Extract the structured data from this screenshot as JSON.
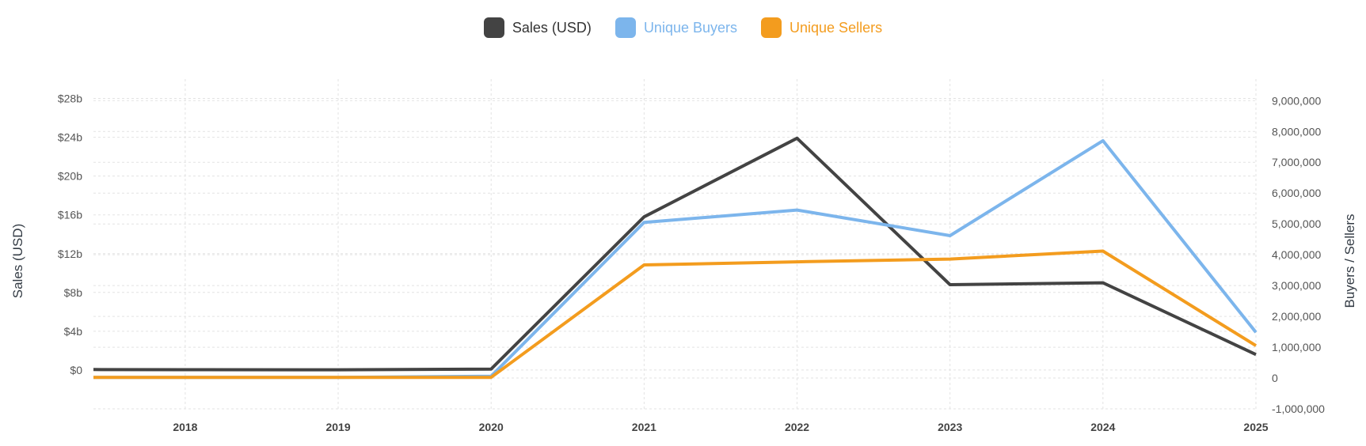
{
  "chart_data": {
    "type": "line",
    "title": "",
    "x": [
      "2018",
      "2019",
      "2020",
      "2021",
      "2022",
      "2023",
      "2024",
      "2025"
    ],
    "x_range": [
      2017.4,
      2025.0
    ],
    "left_axis": {
      "label": "Sales (USD)",
      "range": [
        -4,
        30
      ],
      "ticks": [
        0,
        4,
        8,
        12,
        16,
        20,
        24,
        28
      ],
      "tick_labels": [
        "$0",
        "$4b",
        "$8b",
        "$12b",
        "$16b",
        "$20b",
        "$24b",
        "$28b"
      ],
      "unit": "billion USD"
    },
    "right_axis": {
      "label": "Buyers / Sellers",
      "range": [
        -1000000,
        9700000
      ],
      "ticks": [
        -1000000,
        0,
        1000000,
        2000000,
        3000000,
        4000000,
        5000000,
        6000000,
        7000000,
        8000000,
        9000000
      ],
      "tick_labels": [
        "-1,000,000",
        "0",
        "1,000,000",
        "2,000,000",
        "3,000,000",
        "4,000,000",
        "5,000,000",
        "6,000,000",
        "7,000,000",
        "8,000,000",
        "9,000,000"
      ]
    },
    "series": [
      {
        "name": "Sales (USD)",
        "axis": "left",
        "color": "#434343",
        "x": [
          2017.4,
          2018,
          2019,
          2020,
          2021,
          2022,
          2023,
          2024,
          2025
        ],
        "values": [
          0.05,
          0.04,
          0.03,
          0.1,
          15.8,
          23.9,
          8.8,
          9.0,
          1.6
        ]
      },
      {
        "name": "Unique Buyers",
        "axis": "right",
        "color": "#7cb5ec",
        "x": [
          2017.4,
          2018,
          2019,
          2020,
          2021,
          2022,
          2023,
          2024,
          2025
        ],
        "values": [
          20000,
          20000,
          20000,
          60000,
          5050000,
          5450000,
          4620000,
          7700000,
          1480000
        ]
      },
      {
        "name": "Unique Sellers",
        "axis": "right",
        "color": "#f39c1e",
        "x": [
          2017.4,
          2018,
          2019,
          2020,
          2021,
          2022,
          2023,
          2024,
          2025
        ],
        "values": [
          20000,
          20000,
          20000,
          20000,
          3670000,
          3770000,
          3860000,
          4120000,
          1050000
        ]
      }
    ],
    "legend_position": "top-center",
    "grid": true
  }
}
